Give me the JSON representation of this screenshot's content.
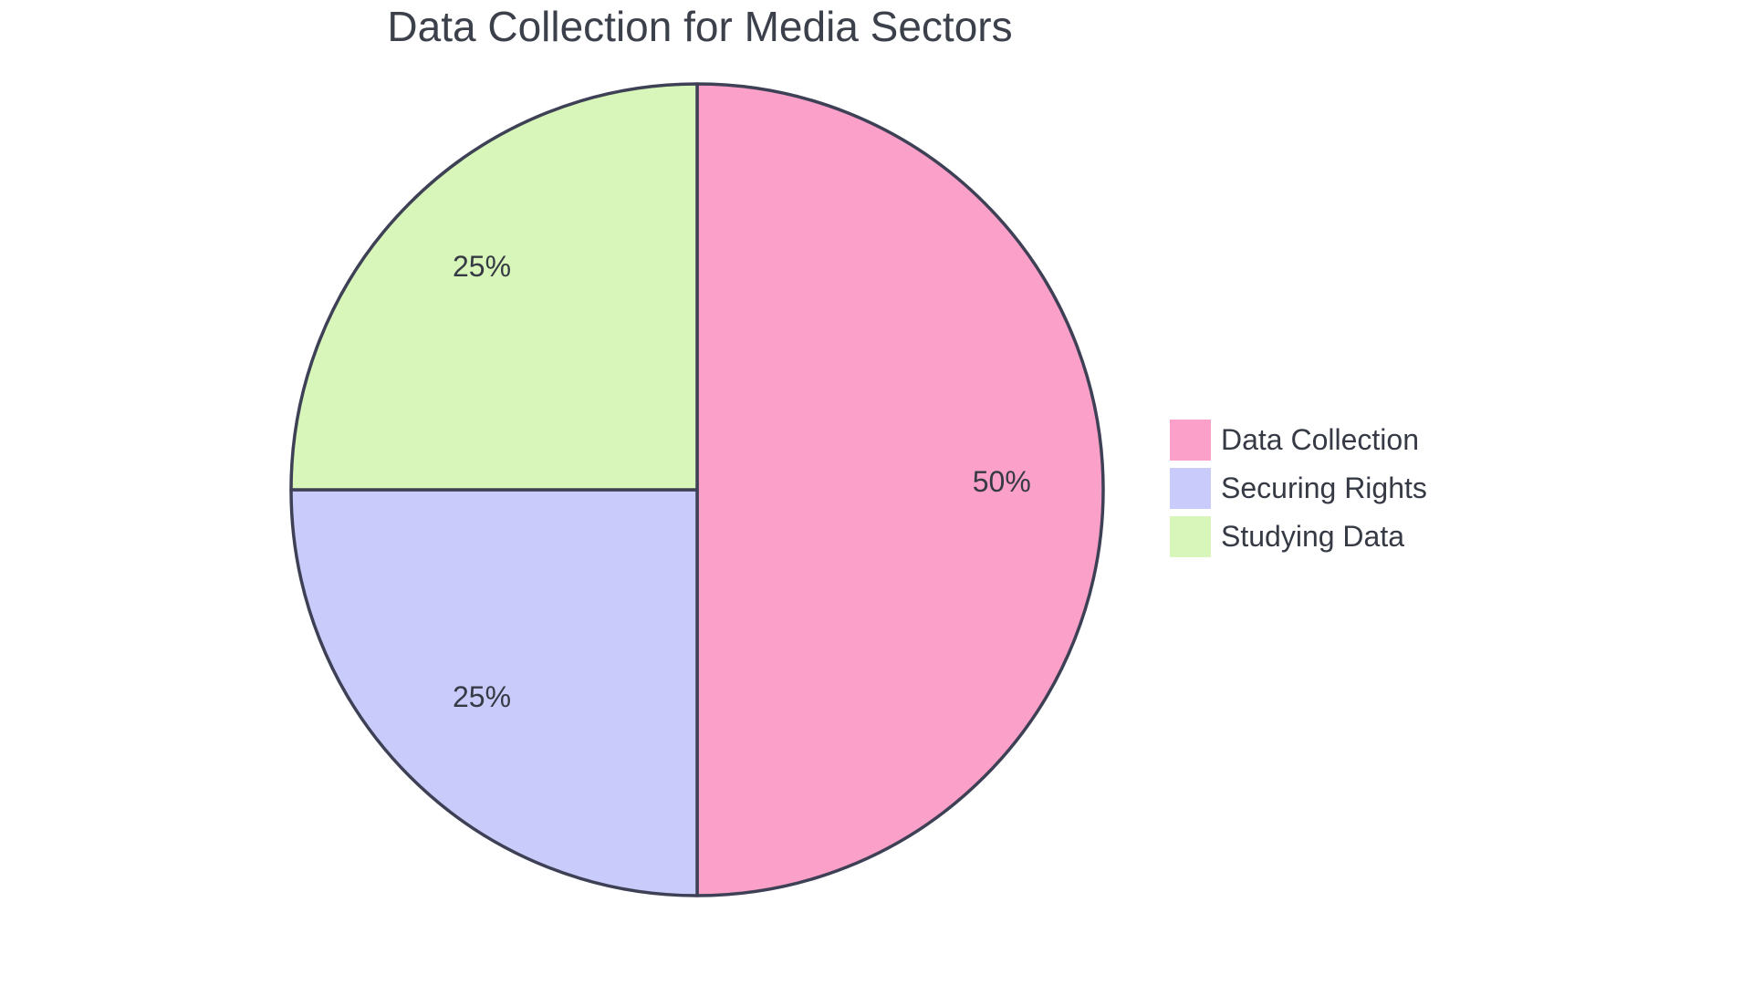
{
  "page": {
    "background": "#FFFFFF"
  },
  "chart_data": {
    "type": "pie",
    "title": "Data Collection for Media Sectors",
    "series": [
      {
        "name": "Data Collection",
        "value": 50,
        "percent_label": "50%",
        "color": "#FBA1C9"
      },
      {
        "name": "Securing Rights",
        "value": 25,
        "percent_label": "25%",
        "color": "#C9CCFA"
      },
      {
        "name": "Studying Data",
        "value": 25,
        "percent_label": "25%",
        "color": "#D8F6B9"
      }
    ],
    "start_angle_deg": 0,
    "direction": "clockwise",
    "labels_inside": true,
    "legend_position": "right",
    "slice_border_color": "#3E4156",
    "label_text_color": "#363A45",
    "title_color": "#3B404B",
    "legend_text_color": "#363A45"
  }
}
